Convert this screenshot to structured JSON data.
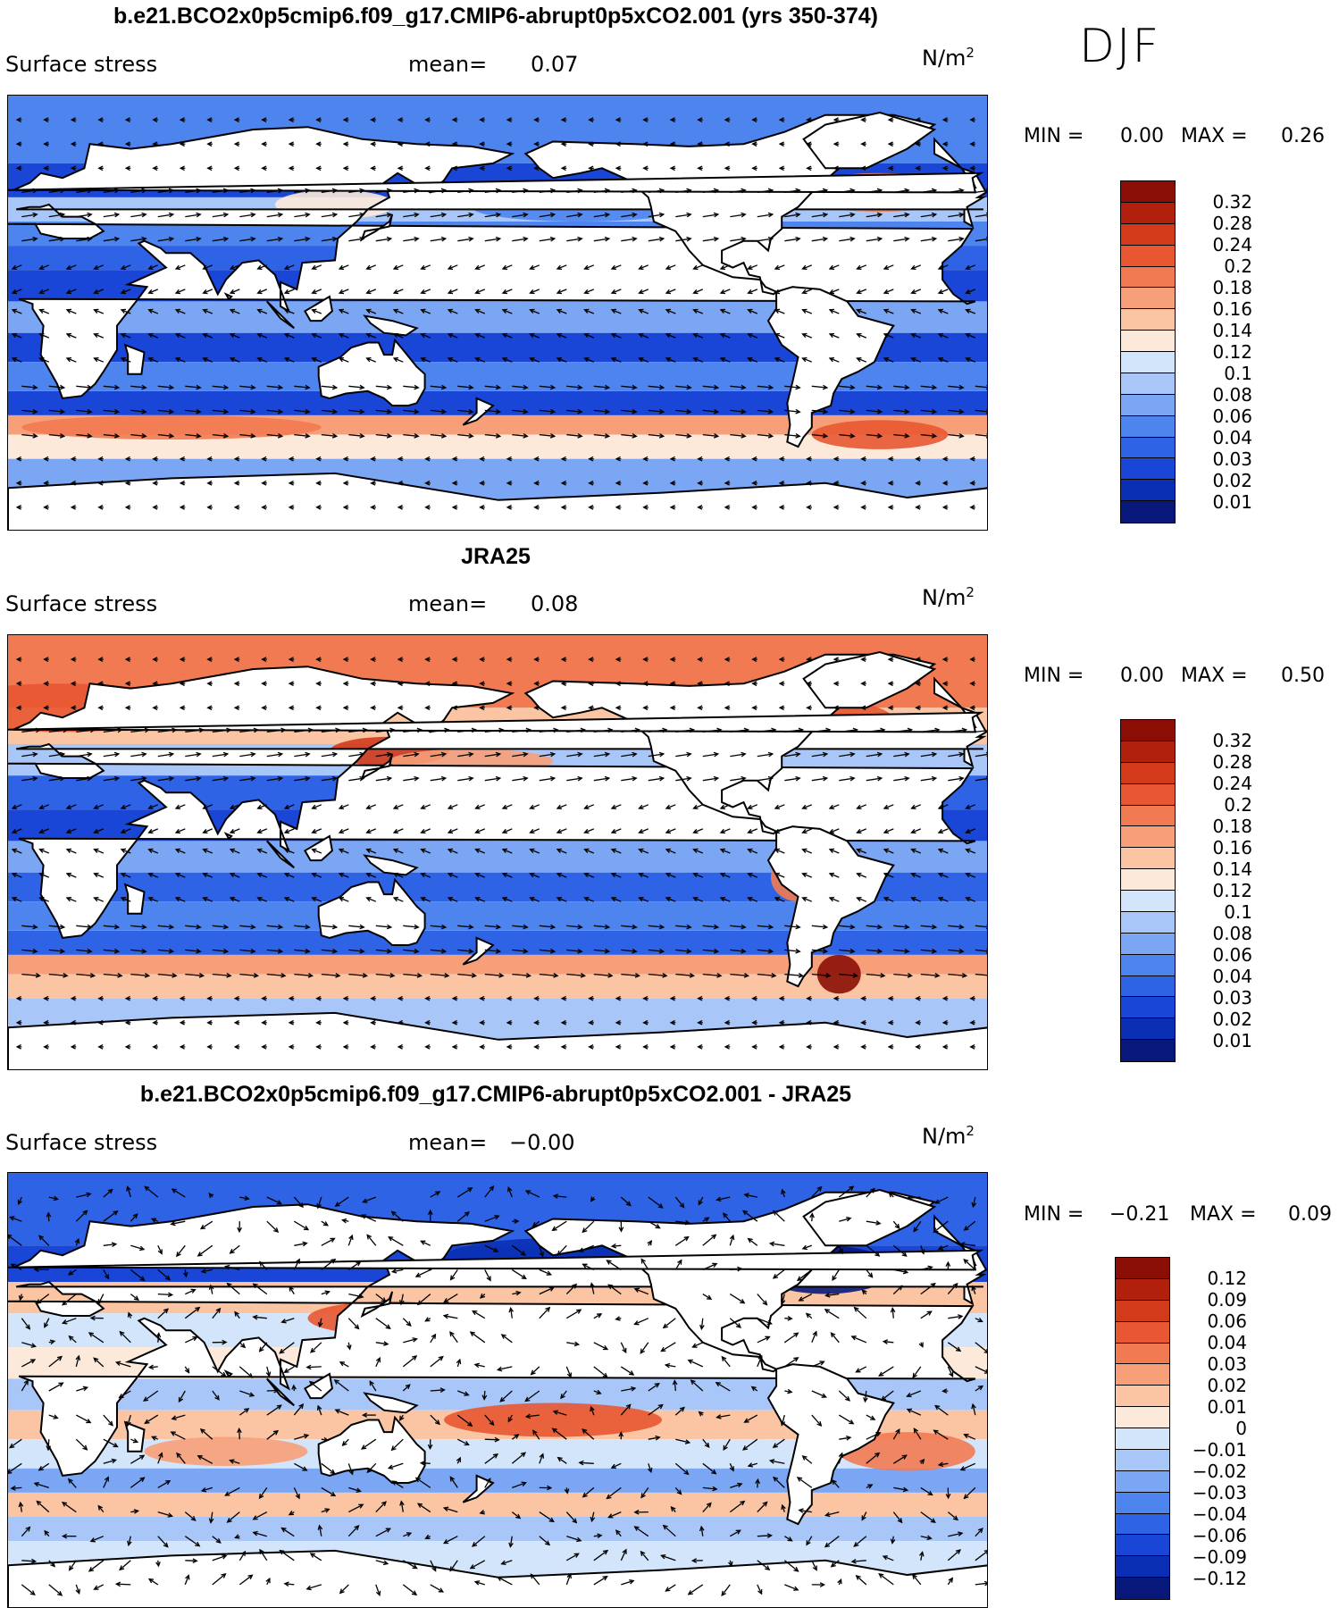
{
  "season": "DJF",
  "colors": {
    "levels": [
      "#08187a",
      "#0a2fb4",
      "#1946d6",
      "#2f63e6",
      "#4d84ee",
      "#7aa6f4",
      "#a8c6f8",
      "#d3e5fb",
      "#fde9da",
      "#fbc5a4",
      "#f79f78",
      "#f27a52",
      "#e85731",
      "#d23a19",
      "#b0200c",
      "#8a0e06"
    ],
    "coast": "#000000",
    "arrow": "#000000"
  },
  "panels": [
    {
      "title": "b.e21.BCO2x0p5cmip6.f09_g17.CMIP6-abrupt0p5xCO2.001 (yrs 350-374)",
      "label": "Surface stress",
      "mean_label": "mean=",
      "mean_value": "0.07",
      "unit": "N/m",
      "unit_sup": "2",
      "min_label": "MIN =",
      "min_value": "0.00",
      "max_label": "MAX =",
      "max_value": "0.26"
    },
    {
      "title": "JRA25",
      "label": "Surface stress",
      "mean_label": "mean=",
      "mean_value": "0.08",
      "unit": "N/m",
      "unit_sup": "2",
      "min_label": "MIN =",
      "min_value": "0.00",
      "max_label": "MAX =",
      "max_value": "0.50"
    },
    {
      "title": "b.e21.BCO2x0p5cmip6.f09_g17.CMIP6-abrupt0p5xCO2.001 - JRA25",
      "label": "Surface stress",
      "mean_label": "mean=",
      "mean_value": "−0.00",
      "unit": "N/m",
      "unit_sup": "2",
      "min_label": "MIN =",
      "min_value": "−0.21",
      "max_label": "MAX =",
      "max_value": "0.09"
    }
  ],
  "chart_data": [
    {
      "type": "heatmap",
      "title": "b.e21.BCO2x0p5cmip6.f09_g17.CMIP6-abrupt0p5xCO2.001 (yrs 350-374)",
      "variable": "Surface stress",
      "units": "N/m2",
      "season": "DJF",
      "mean": 0.07,
      "min": 0.0,
      "max": 0.26,
      "contour_levels": [
        "0.01",
        "0.02",
        "0.03",
        "0.04",
        "0.06",
        "0.08",
        "0.1",
        "0.12",
        "0.14",
        "0.16",
        "0.18",
        "0.2",
        "0.24",
        "0.28",
        "0.32"
      ],
      "lon_range": [
        0,
        360
      ],
      "lat_range": [
        -90,
        90
      ]
    },
    {
      "type": "heatmap",
      "title": "JRA25",
      "variable": "Surface stress",
      "units": "N/m2",
      "season": "DJF",
      "mean": 0.08,
      "min": 0.0,
      "max": 0.5,
      "contour_levels": [
        "0.01",
        "0.02",
        "0.03",
        "0.04",
        "0.06",
        "0.08",
        "0.1",
        "0.12",
        "0.14",
        "0.16",
        "0.18",
        "0.2",
        "0.24",
        "0.28",
        "0.32"
      ],
      "lon_range": [
        0,
        360
      ],
      "lat_range": [
        -90,
        90
      ]
    },
    {
      "type": "heatmap",
      "title": "b.e21.BCO2x0p5cmip6.f09_g17.CMIP6-abrupt0p5xCO2.001 - JRA25",
      "variable": "Surface stress",
      "units": "N/m2",
      "season": "DJF",
      "mean": -0.0,
      "min": -0.21,
      "max": 0.09,
      "contour_levels": [
        "−0.12",
        "−0.09",
        "−0.06",
        "−0.04",
        "−0.03",
        "−0.02",
        "−0.01",
        "0",
        "0.01",
        "0.02",
        "0.03",
        "0.04",
        "0.06",
        "0.09",
        "0.12"
      ],
      "lon_range": [
        0,
        360
      ],
      "lat_range": [
        -90,
        90
      ]
    }
  ]
}
